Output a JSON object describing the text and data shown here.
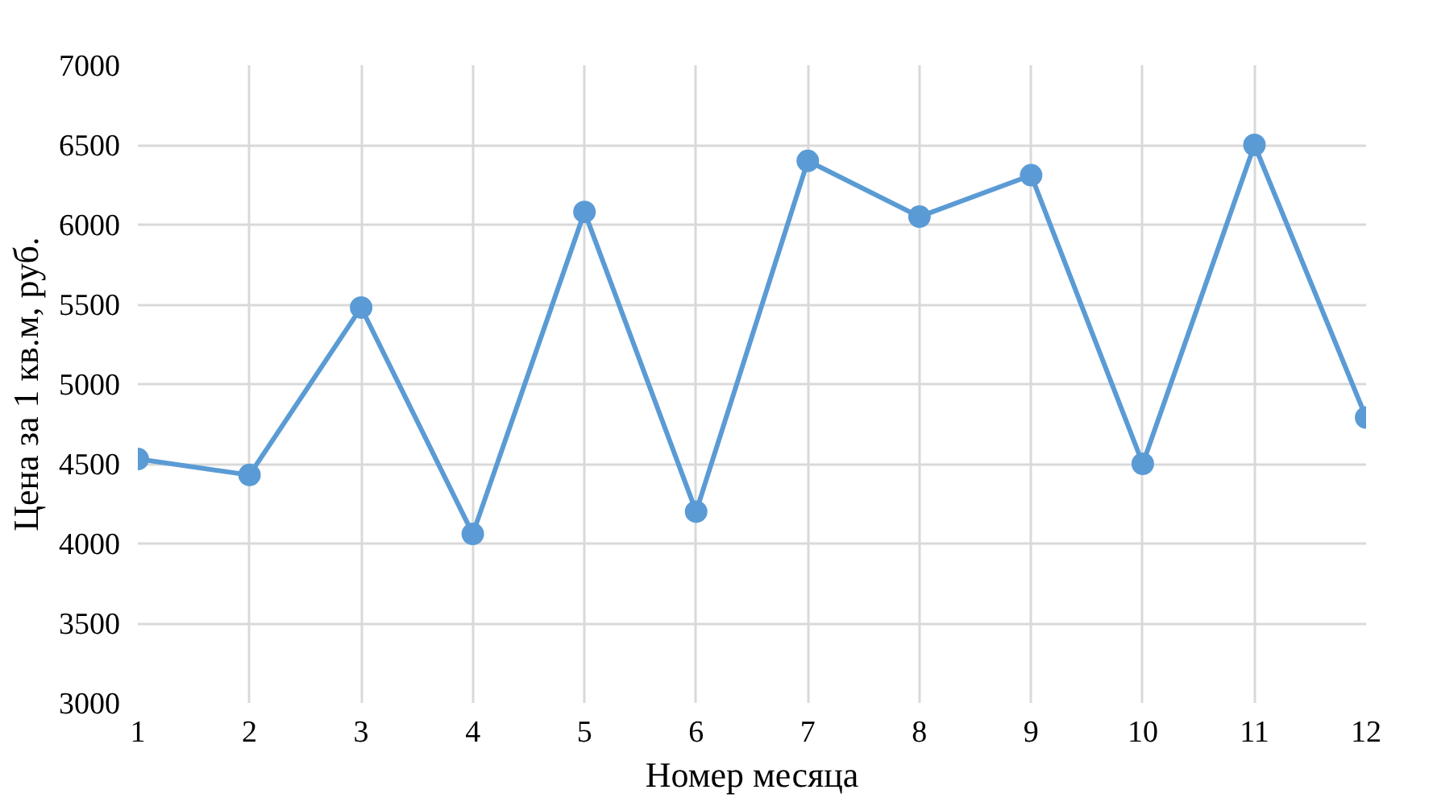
{
  "chart_data": {
    "type": "line",
    "xlabel": "Номер месяца",
    "ylabel": "Цена за 1 кв.м, руб.",
    "x": [
      1,
      2,
      3,
      4,
      5,
      6,
      7,
      8,
      9,
      10,
      11,
      12
    ],
    "series": [
      {
        "color": "#5b9bd5",
        "values": [
          4530,
          4430,
          5480,
          4060,
          6080,
          4200,
          6400,
          6050,
          6310,
          4500,
          6500,
          4790
        ]
      }
    ],
    "xlim": [
      1,
      12
    ],
    "xticks": [
      1,
      2,
      3,
      4,
      5,
      6,
      7,
      8,
      9,
      10,
      11,
      12
    ],
    "ylim": [
      3000,
      7000
    ],
    "yticks": [
      3000,
      3500,
      4000,
      4500,
      5000,
      5500,
      6000,
      6500,
      7000
    ],
    "grid": true,
    "marker": "circle",
    "line_style": "solid"
  }
}
